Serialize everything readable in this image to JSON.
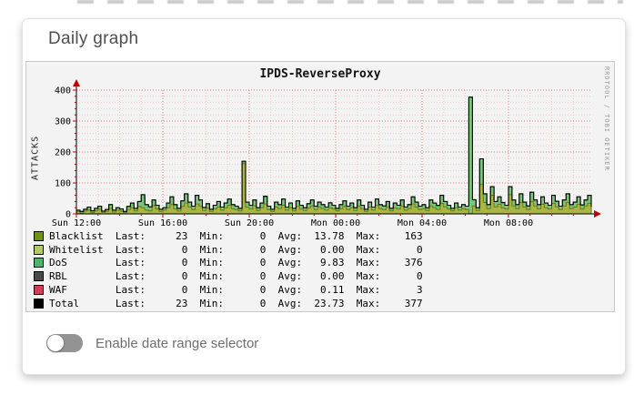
{
  "card": {
    "title": "Daily graph",
    "toggle": {
      "label": "Enable date range selector",
      "state": "off"
    }
  },
  "chart": {
    "title": "IPDS-ReverseProxy",
    "ylabel": "ATTACKS",
    "watermark": "RRDTOOL / TOBI OETIKER"
  },
  "chart_data": {
    "type": "area",
    "title": "IPDS-ReverseProxy",
    "ylabel": "ATTACKS",
    "ylim": [
      0,
      440
    ],
    "y_ticks": [
      0,
      100,
      200,
      300,
      400
    ],
    "x_ticks": [
      {
        "label": "Sun 12:00",
        "hour": 0
      },
      {
        "label": "Sun 16:00",
        "hour": 4
      },
      {
        "label": "Sun 20:00",
        "hour": 8
      },
      {
        "label": "Mon 00:00",
        "hour": 12
      },
      {
        "label": "Mon 04:00",
        "hour": 16
      },
      {
        "label": "Mon 08:00",
        "hour": 20
      }
    ],
    "x_span_hours": 23.83,
    "sample_minutes": 10,
    "grid": {
      "minor_x_hours": 1,
      "major_x_hours": 4,
      "minor_y": 20,
      "major_y": 100
    },
    "series": [
      {
        "name": "Blacklist",
        "legend_color": "#6e9414",
        "fill": "#aab544",
        "stroke": "#6b7a10",
        "values": [
          7,
          3,
          9,
          12,
          4,
          10,
          15,
          5,
          8,
          18,
          6,
          12,
          9,
          4,
          14,
          20,
          10,
          24,
          20,
          12,
          10,
          27,
          16,
          8,
          12,
          20,
          30,
          16,
          9,
          24,
          35,
          22,
          14,
          32,
          26,
          11,
          19,
          8,
          16,
          22,
          12,
          20,
          28,
          17,
          14,
          10,
          163,
          22,
          16,
          26,
          11,
          20,
          32,
          14,
          8,
          22,
          17,
          28,
          12,
          20,
          10,
          24,
          16,
          11,
          19,
          26,
          14,
          22,
          17,
          12,
          20,
          16,
          10,
          17,
          24,
          14,
          20,
          11,
          26,
          16,
          8,
          22,
          12,
          28,
          17,
          14,
          23,
          10,
          20,
          16,
          26,
          12,
          17,
          32,
          22,
          14,
          17,
          11,
          26,
          20,
          14,
          34,
          23,
          16,
          10,
          20,
          12,
          17,
          14,
          1,
          26,
          11,
          95,
          37,
          17,
          60,
          23,
          31,
          20,
          16,
          62,
          26,
          17,
          37,
          22,
          14,
          40,
          26,
          17,
          31,
          20,
          16,
          34,
          23,
          14,
          26,
          37,
          17,
          22,
          31,
          16,
          26,
          34,
          23
        ]
      },
      {
        "name": "Whitelist",
        "legend_color": "#b4c95e",
        "all_zero": true
      },
      {
        "name": "DoS",
        "legend_color": "#4cb56b",
        "fill": "#7cc47f",
        "stroke": "#17a317",
        "values": [
          5,
          5,
          6,
          10,
          6,
          8,
          10,
          4,
          6,
          12,
          6,
          8,
          7,
          4,
          10,
          15,
          8,
          16,
          42,
          18,
          12,
          18,
          12,
          7,
          8,
          15,
          25,
          14,
          9,
          18,
          30,
          16,
          11,
          28,
          19,
          9,
          14,
          7,
          12,
          18,
          10,
          15,
          20,
          13,
          11,
          8,
          7,
          16,
          12,
          19,
          9,
          15,
          23,
          11,
          7,
          16,
          13,
          20,
          10,
          15,
          8,
          18,
          12,
          9,
          14,
          19,
          11,
          16,
          13,
          10,
          15,
          12,
          8,
          13,
          18,
          11,
          15,
          9,
          19,
          12,
          7,
          16,
          10,
          20,
          13,
          11,
          17,
          8,
          15,
          12,
          19,
          10,
          13,
          23,
          16,
          11,
          13,
          9,
          19,
          15,
          11,
          26,
          17,
          12,
          8,
          15,
          10,
          13,
          11,
          376,
          19,
          9,
          83,
          28,
          13,
          28,
          17,
          24,
          15,
          12,
          26,
          19,
          13,
          28,
          16,
          11,
          30,
          19,
          13,
          24,
          15,
          12,
          26,
          17,
          11,
          19,
          28,
          13,
          16,
          24,
          12,
          19,
          26,
          0
        ]
      },
      {
        "name": "RBL",
        "legend_color": "#4a4a4a",
        "all_zero": true
      },
      {
        "name": "WAF",
        "legend_color": "#d43f57",
        "fill": "#d43f57",
        "stroke": "#b22038",
        "points": [
          [
            20,
            1
          ],
          [
            35,
            1
          ],
          [
            52,
            2
          ],
          [
            70,
            1
          ],
          [
            85,
            1
          ],
          [
            100,
            3
          ],
          [
            110,
            1
          ],
          [
            118,
            2
          ],
          [
            125,
            1
          ],
          [
            133,
            1
          ],
          [
            140,
            1
          ]
        ]
      }
    ],
    "total": {
      "name": "Total",
      "color": "#000000"
    },
    "legend": {
      "columns": [
        "Last:",
        "Min:",
        "Avg:",
        "Max:"
      ],
      "rows": [
        {
          "name": "Blacklist",
          "color": "#6e9414",
          "last": "23",
          "min": "0",
          "avg": "13.78",
          "max": "163"
        },
        {
          "name": "Whitelist",
          "color": "#b4c95e",
          "last": "0",
          "min": "0",
          "avg": "0.00",
          "max": "0"
        },
        {
          "name": "DoS",
          "color": "#4cb56b",
          "last": "0",
          "min": "0",
          "avg": "9.83",
          "max": "376"
        },
        {
          "name": "RBL",
          "color": "#4a4a4a",
          "last": "0",
          "min": "0",
          "avg": "0.00",
          "max": "0"
        },
        {
          "name": "WAF",
          "color": "#d43f57",
          "last": "0",
          "min": "0",
          "avg": "0.11",
          "max": "3"
        },
        {
          "name": "Total",
          "color": "#000000",
          "last": "23",
          "min": "0",
          "avg": "23.73",
          "max": "377"
        }
      ]
    }
  }
}
